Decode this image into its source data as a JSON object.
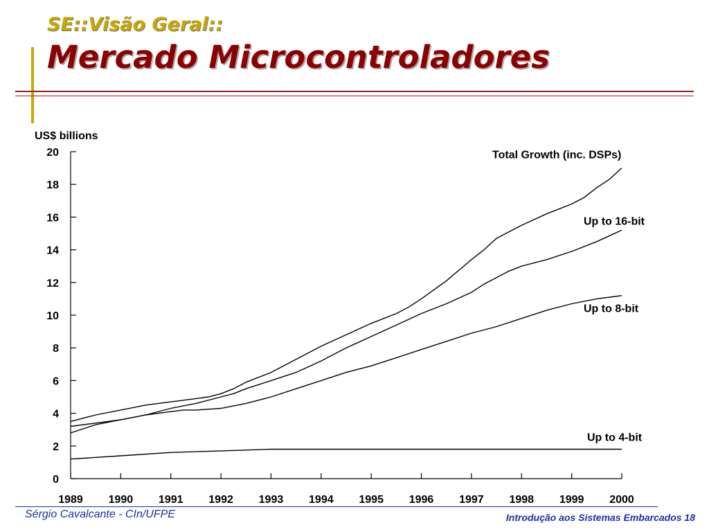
{
  "slide": {
    "subtitle": "SE::Visão Geral::",
    "title": "Mercado Microcontroladores",
    "footer_left": "Sérgio Cavalcante - CIn/UFPE",
    "footer_right": "Introdução aos Sistemas Embarcados 18"
  },
  "colors": {
    "title": "#8b0000",
    "subtitle": "#c8a800",
    "accent_bar": "#c8a800",
    "rule": "#9b1a1a",
    "footer": "#1c2fa0",
    "lines": "#000000"
  },
  "chart_data": {
    "type": "line",
    "title": "",
    "xlabel": "",
    "ylabel": "US$ billions",
    "xlim": [
      1989,
      2000
    ],
    "ylim": [
      0,
      20
    ],
    "x_ticks": [
      1989,
      1990,
      1991,
      1992,
      1993,
      1994,
      1995,
      1996,
      1997,
      1998,
      1999,
      2000
    ],
    "y_ticks": [
      0,
      2,
      4,
      6,
      8,
      10,
      12,
      14,
      16,
      18,
      20
    ],
    "grid": false,
    "legend": "inline labels at right",
    "series": [
      {
        "name": "Total Growth (inc. DSPs)",
        "x": [
          1989,
          1989.5,
          1990,
          1990.5,
          1991,
          1991.5,
          1991.75,
          1992,
          1992.25,
          1992.5,
          1993,
          1993.5,
          1994,
          1994.5,
          1995,
          1995.5,
          1995.75,
          1996,
          1996.5,
          1997,
          1997.25,
          1997.5,
          1997.75,
          1998,
          1998.5,
          1999,
          1999.25,
          1999.5,
          1999.75,
          2000
        ],
        "y": [
          3.5,
          3.9,
          4.2,
          4.5,
          4.7,
          4.9,
          5.0,
          5.2,
          5.5,
          5.9,
          6.5,
          7.3,
          8.1,
          8.8,
          9.5,
          10.1,
          10.5,
          11.0,
          12.1,
          13.4,
          14.0,
          14.7,
          15.1,
          15.5,
          16.2,
          16.8,
          17.2,
          17.8,
          18.3,
          19.0
        ]
      },
      {
        "name": "Up to 16-bit",
        "x": [
          1989,
          1989.5,
          1990,
          1990.5,
          1991,
          1991.5,
          1992,
          1992.25,
          1992.5,
          1993,
          1993.5,
          1994,
          1994.5,
          1995,
          1995.5,
          1996,
          1996.5,
          1997,
          1997.25,
          1997.5,
          1997.75,
          1998,
          1998.5,
          1999,
          1999.5,
          2000
        ],
        "y": [
          3.2,
          3.4,
          3.6,
          3.9,
          4.3,
          4.6,
          5.0,
          5.2,
          5.5,
          6.0,
          6.5,
          7.2,
          8.0,
          8.7,
          9.4,
          10.1,
          10.7,
          11.4,
          11.9,
          12.3,
          12.7,
          13.0,
          13.4,
          13.9,
          14.5,
          15.2
        ]
      },
      {
        "name": "Up to 8-bit",
        "x": [
          1989,
          1989.5,
          1990,
          1990.5,
          1991,
          1991.25,
          1991.5,
          1992,
          1992.5,
          1993,
          1993.5,
          1994,
          1994.5,
          1995,
          1995.5,
          1996,
          1996.5,
          1997,
          1997.5,
          1998,
          1998.5,
          1999,
          1999.5,
          2000
        ],
        "y": [
          2.8,
          3.3,
          3.6,
          3.9,
          4.1,
          4.2,
          4.2,
          4.3,
          4.6,
          5.0,
          5.5,
          6.0,
          6.5,
          6.9,
          7.4,
          7.9,
          8.4,
          8.9,
          9.3,
          9.8,
          10.3,
          10.7,
          11.0,
          11.2
        ]
      },
      {
        "name": "Up to 4-bit",
        "x": [
          1989,
          1990,
          1991,
          1992,
          1993,
          1994,
          1995,
          1996,
          1997,
          1998,
          1999,
          2000
        ],
        "y": [
          1.2,
          1.4,
          1.6,
          1.7,
          1.8,
          1.8,
          1.8,
          1.8,
          1.8,
          1.8,
          1.8,
          1.8
        ]
      }
    ]
  }
}
